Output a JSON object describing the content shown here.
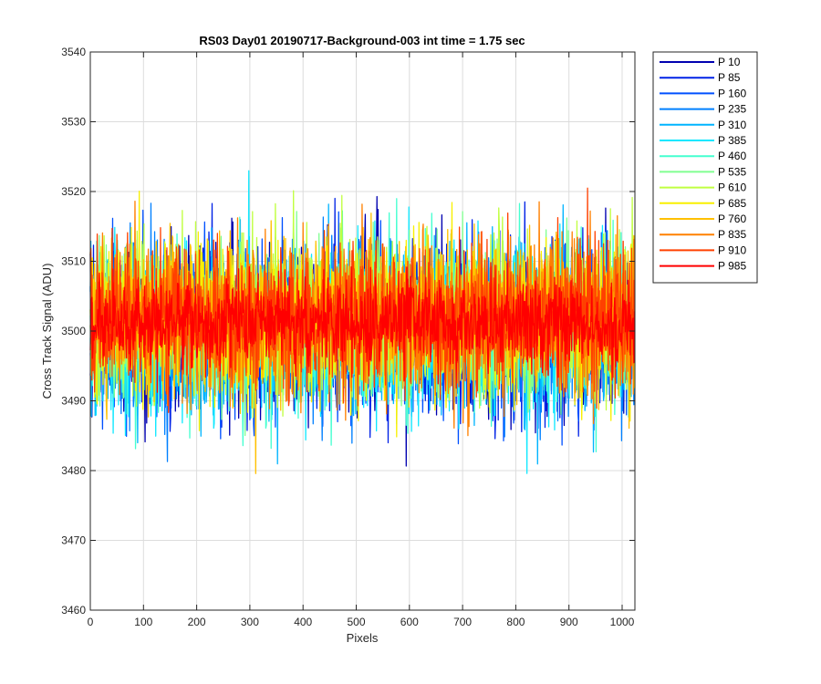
{
  "chart_data": {
    "type": "line",
    "title": "RS03 Day01 20190717-Background-003 int time = 1.75 sec",
    "xlabel": "Pixels",
    "ylabel": "Cross Track Signal (ADU)",
    "xlim": [
      0,
      1024
    ],
    "ylim": [
      3460,
      3540
    ],
    "x_ticks": [
      0,
      100,
      200,
      300,
      400,
      500,
      600,
      700,
      800,
      900,
      1000
    ],
    "y_ticks": [
      3460,
      3470,
      3480,
      3490,
      3500,
      3510,
      3520,
      3530,
      3540
    ],
    "grid": true,
    "legend_position": "outside-top-right",
    "x": {
      "start": 0,
      "end": 1023,
      "step": 1
    },
    "series": [
      {
        "name": "P 10",
        "color": "#0000b0",
        "mean": 3500,
        "noise": 9.0,
        "trend": 0.0,
        "seed": 11
      },
      {
        "name": "P 85",
        "color": "#0022e6",
        "mean": 3500,
        "noise": 9.0,
        "trend": 0.0,
        "seed": 23
      },
      {
        "name": "P 160",
        "color": "#0050ff",
        "mean": 3500,
        "noise": 9.0,
        "trend": 0.0,
        "seed": 37
      },
      {
        "name": "P 235",
        "color": "#0080ff",
        "mean": 3500,
        "noise": 9.0,
        "trend": 0.0,
        "seed": 41
      },
      {
        "name": "P 310",
        "color": "#00b4ff",
        "mean": 3500,
        "noise": 9.0,
        "trend": 0.0,
        "seed": 53
      },
      {
        "name": "P 385",
        "color": "#10e8ff",
        "mean": 3500,
        "noise": 9.0,
        "trend": 0.0,
        "seed": 67
      },
      {
        "name": "P 460",
        "color": "#44ffd0",
        "mean": 3500,
        "noise": 9.0,
        "trend": 0.0,
        "seed": 71
      },
      {
        "name": "P 535",
        "color": "#80ff90",
        "mean": 3501,
        "noise": 9.0,
        "trend": 0.0,
        "seed": 83
      },
      {
        "name": "P 610",
        "color": "#c0ff40",
        "mean": 3502,
        "noise": 9.0,
        "trend": 0.0,
        "seed": 97
      },
      {
        "name": "P 685",
        "color": "#f8f000",
        "mean": 3502,
        "noise": 9.0,
        "trend": 0.0,
        "seed": 101
      },
      {
        "name": "P 760",
        "color": "#ffc000",
        "mean": 3502,
        "noise": 9.0,
        "trend": 0.0,
        "seed": 113
      },
      {
        "name": "P 835",
        "color": "#ff8000",
        "mean": 3502,
        "noise": 9.0,
        "trend": 0.0,
        "seed": 127
      },
      {
        "name": "P 910",
        "color": "#ff4000",
        "mean": 3502,
        "noise": 8.0,
        "trend": 0.0,
        "seed": 131
      },
      {
        "name": "P 985",
        "color": "#ff0000",
        "mean": 3501,
        "noise": 5.0,
        "trend": 0.0,
        "seed": 149
      }
    ]
  }
}
